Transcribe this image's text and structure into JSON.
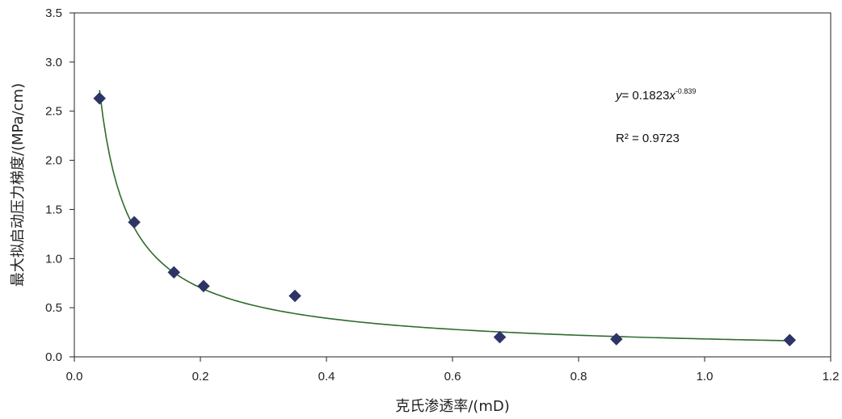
{
  "chart_data": {
    "type": "scatter",
    "title": "",
    "xlabel": "克氏渗透率/(mD)",
    "ylabel": "最大拟启动压力梯度/(MPa/cm)",
    "xlim": [
      0.0,
      1.2
    ],
    "ylim": [
      0.0,
      3.5
    ],
    "x_ticks": [
      "0.0",
      "0.2",
      "0.4",
      "0.6",
      "0.8",
      "1.0",
      "1.2"
    ],
    "y_ticks": [
      "0.0",
      "0.5",
      "1.0",
      "1.5",
      "2.0",
      "2.5",
      "3.0",
      "3.5"
    ],
    "grid": false,
    "legend": "none",
    "series": [
      {
        "marker": "diamond",
        "color": "#2E3466",
        "x": [
          0.04,
          0.095,
          0.158,
          0.205,
          0.35,
          0.675,
          0.86,
          1.135
        ],
        "y": [
          2.63,
          1.37,
          0.86,
          0.72,
          0.62,
          0.2,
          0.18,
          0.17
        ]
      }
    ],
    "trendline": {
      "type": "power",
      "coefficient": 0.1823,
      "exponent": -0.839,
      "x_range": [
        0.04,
        1.135
      ],
      "color": "#2E6B2E"
    },
    "annotations": {
      "equation": {
        "y": "y",
        "eq_mid": "= 0.1823",
        "x": "x",
        "exponent": "-0.839"
      },
      "r_squared": "R² = 0.9723"
    }
  }
}
